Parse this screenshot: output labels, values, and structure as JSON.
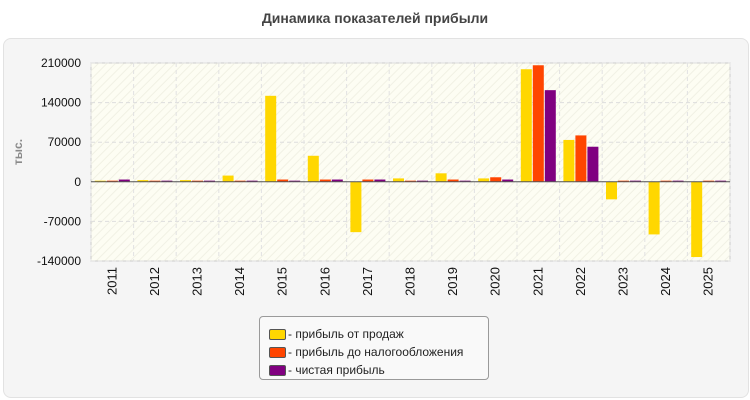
{
  "chart_data": {
    "type": "bar",
    "title": "Динамика показателей прибыли",
    "ylabel": "тыс.",
    "xlabel": "",
    "ylim": [
      -140000,
      210000
    ],
    "yticks": [
      210000,
      140000,
      70000,
      0,
      -70000,
      -140000
    ],
    "grid": true,
    "legend_position": "bottom-center",
    "categories": [
      "2011",
      "2012",
      "2013",
      "2014",
      "2015",
      "2016",
      "2017",
      "2018",
      "2019",
      "2020",
      "2021",
      "2022",
      "2023",
      "2024",
      "2025"
    ],
    "series": [
      {
        "name": "- прибыль от продаж",
        "color": "#ffd700",
        "values": [
          2000,
          3000,
          3000,
          11000,
          152000,
          46000,
          -89000,
          6000,
          15000,
          6000,
          199000,
          74000,
          -31000,
          -93000,
          -133000
        ]
      },
      {
        "name": "- прибыль до налогообложения",
        "color": "#ff4500",
        "values": [
          2000,
          2000,
          2000,
          2000,
          4000,
          4000,
          4000,
          2000,
          4000,
          8000,
          206000,
          82000,
          2000,
          2000,
          2000
        ]
      },
      {
        "name": "- чистая прибыль",
        "color": "#800080",
        "values": [
          4000,
          2000,
          2000,
          2000,
          2000,
          4000,
          4000,
          2000,
          2000,
          4000,
          162000,
          62000,
          2000,
          2000,
          2000
        ]
      }
    ]
  }
}
